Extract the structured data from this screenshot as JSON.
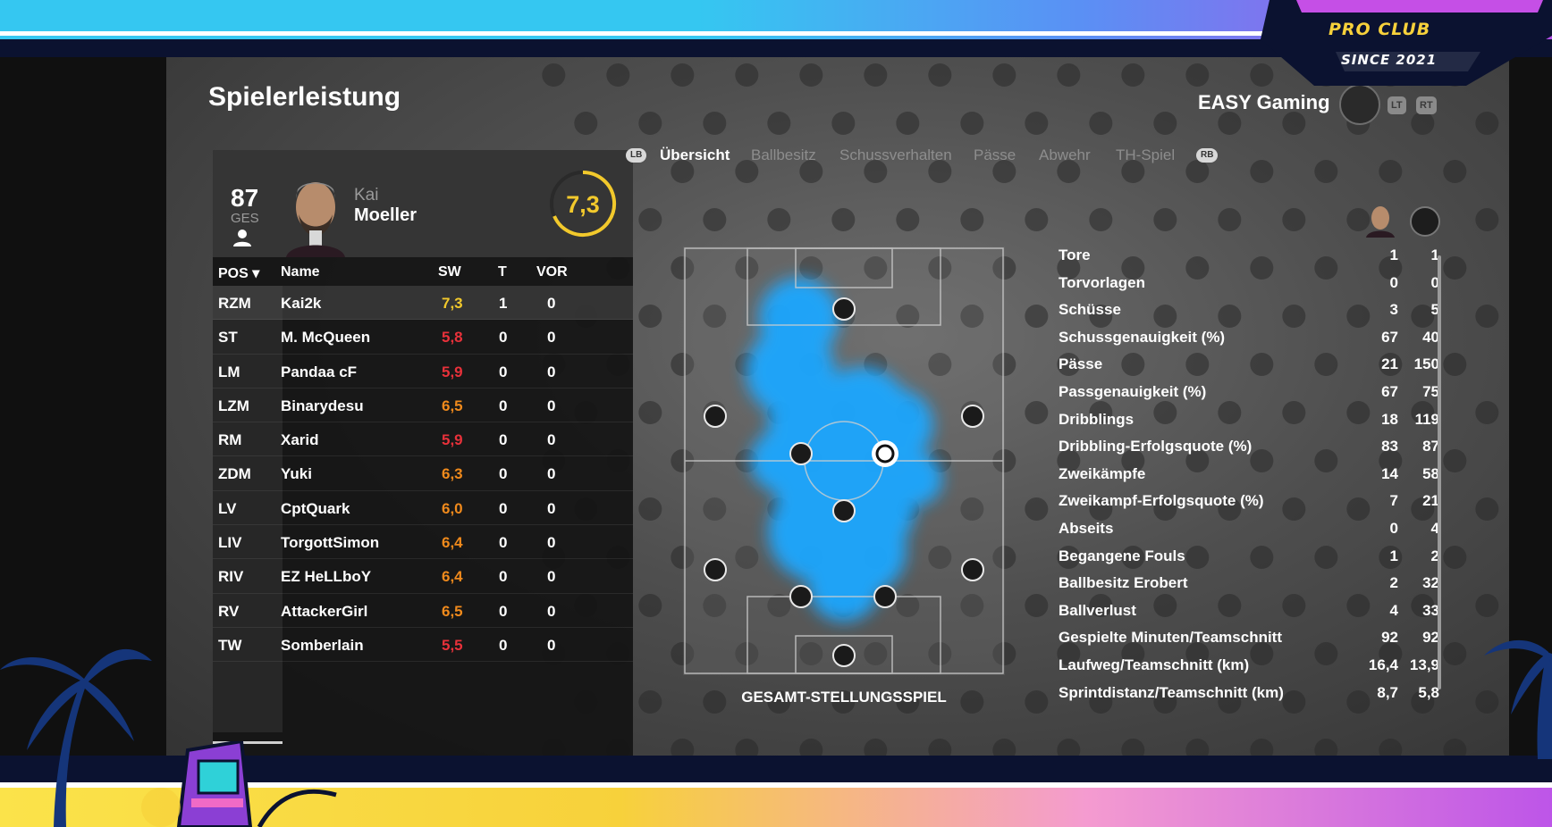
{
  "overlay": {
    "logo_line1": "PRO CLUB",
    "logo_line2": "SINCE 2021"
  },
  "header": {
    "title": "Spielerleistung",
    "team_name": "EASY Gaming",
    "lt_label": "LT",
    "rt_label": "RT"
  },
  "player": {
    "overall": "87",
    "overall_label": "GES",
    "first_name": "Kai",
    "last_name": "Moeller",
    "match_rating": "7,3"
  },
  "table": {
    "headers": {
      "pos": "POS ▾",
      "name": "Name",
      "sw": "SW",
      "t": "T",
      "vor": "VOR"
    },
    "rows": [
      {
        "pos": "RZM",
        "name": "Kai2k",
        "sw": "7,3",
        "t": "1",
        "vor": "0",
        "sw_color": "#f2c92c"
      },
      {
        "pos": "ST",
        "name": "M. McQueen",
        "sw": "5,8",
        "t": "0",
        "vor": "0",
        "sw_color": "#e8313a"
      },
      {
        "pos": "LM",
        "name": "Pandaa cF",
        "sw": "5,9",
        "t": "0",
        "vor": "0",
        "sw_color": "#e8313a"
      },
      {
        "pos": "LZM",
        "name": "Binarydesu",
        "sw": "6,5",
        "t": "0",
        "vor": "0",
        "sw_color": "#f08a1c"
      },
      {
        "pos": "RM",
        "name": "Xarid",
        "sw": "5,9",
        "t": "0",
        "vor": "0",
        "sw_color": "#e8313a"
      },
      {
        "pos": "ZDM",
        "name": "Yuki",
        "sw": "6,3",
        "t": "0",
        "vor": "0",
        "sw_color": "#f08a1c"
      },
      {
        "pos": "LV",
        "name": "CptQuark",
        "sw": "6,0",
        "t": "0",
        "vor": "0",
        "sw_color": "#f08a1c"
      },
      {
        "pos": "LIV",
        "name": "TorgottSimon",
        "sw": "6,4",
        "t": "0",
        "vor": "0",
        "sw_color": "#f08a1c"
      },
      {
        "pos": "RIV",
        "name": "EZ HeLLboY",
        "sw": "6,4",
        "t": "0",
        "vor": "0",
        "sw_color": "#f08a1c"
      },
      {
        "pos": "RV",
        "name": "AttackerGirl",
        "sw": "6,5",
        "t": "0",
        "vor": "0",
        "sw_color": "#f08a1c"
      },
      {
        "pos": "TW",
        "name": "Somberlain",
        "sw": "5,5",
        "t": "0",
        "vor": "0",
        "sw_color": "#e8313a"
      }
    ]
  },
  "tabs": {
    "lb": "LB",
    "rb": "RB",
    "items": [
      "Übersicht",
      "Ballbesitz",
      "Schussverhalten",
      "Pässe",
      "Abwehr",
      "TH-Spiel"
    ],
    "active": "Übersicht"
  },
  "pitch": {
    "caption": "GESAMT-STELLUNGSSPIEL",
    "heat_color": "#1ea7ff"
  },
  "stats": [
    {
      "label": "Tore",
      "player": "1",
      "team": "1"
    },
    {
      "label": "Torvorlagen",
      "player": "0",
      "team": "0"
    },
    {
      "label": "Schüsse",
      "player": "3",
      "team": "5"
    },
    {
      "label": "Schussgenauigkeit (%)",
      "player": "67",
      "team": "40"
    },
    {
      "label": "Pässe",
      "player": "21",
      "team": "150"
    },
    {
      "label": "Passgenauigkeit (%)",
      "player": "67",
      "team": "75"
    },
    {
      "label": "Dribblings",
      "player": "18",
      "team": "119"
    },
    {
      "label": "Dribbling-Erfolgsquote (%)",
      "player": "83",
      "team": "87"
    },
    {
      "label": "Zweikämpfe",
      "player": "14",
      "team": "58"
    },
    {
      "label": "Zweikampf-Erfolgsquote (%)",
      "player": "7",
      "team": "21"
    },
    {
      "label": "Abseits",
      "player": "0",
      "team": "4"
    },
    {
      "label": "Begangene Fouls",
      "player": "1",
      "team": "2"
    },
    {
      "label": "Ballbesitz Erobert",
      "player": "2",
      "team": "32"
    },
    {
      "label": "Ballverlust",
      "player": "4",
      "team": "33"
    },
    {
      "label": "Gespielte Minuten/Teamschnitt",
      "player": "92",
      "team": "92"
    },
    {
      "label": "Laufweg/Teamschnitt (km)",
      "player": "16,4",
      "team": "13,9"
    },
    {
      "label": "Sprintdistanz/Teamschnitt (km)",
      "player": "8,7",
      "team": "5,8"
    }
  ]
}
